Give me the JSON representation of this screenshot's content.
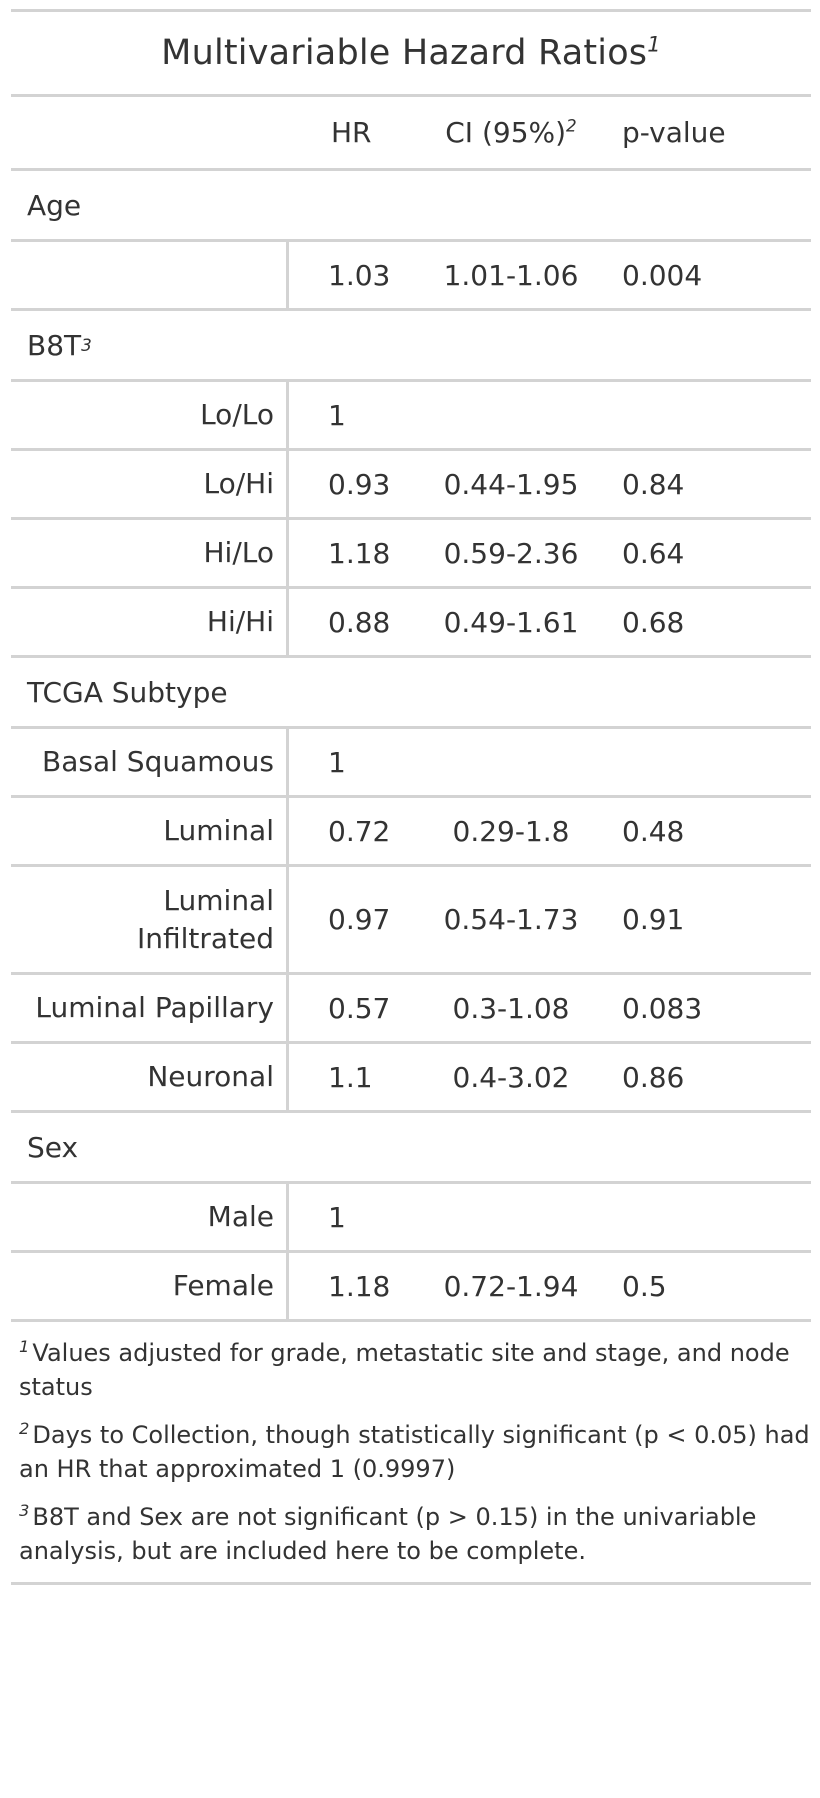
{
  "table": {
    "title": "Multivariable Hazard Ratios",
    "title_mark": "1",
    "columns": {
      "hr": "HR",
      "ci": "CI (95%)",
      "ci_mark": "2",
      "p": "p-value"
    },
    "groups": [
      {
        "label": "Age",
        "mark": "",
        "rows": [
          {
            "label": "",
            "hr": "1.03",
            "ci": "1.01-1.06",
            "p": "0.004"
          }
        ]
      },
      {
        "label": "B8T",
        "mark": "3",
        "rows": [
          {
            "label": "Lo/Lo",
            "hr": "1",
            "ci": "",
            "p": ""
          },
          {
            "label": "Lo/Hi",
            "hr": "0.93",
            "ci": "0.44-1.95",
            "p": "0.84"
          },
          {
            "label": "Hi/Lo",
            "hr": "1.18",
            "ci": "0.59-2.36",
            "p": "0.64"
          },
          {
            "label": "Hi/Hi",
            "hr": "0.88",
            "ci": "0.49-1.61",
            "p": "0.68"
          }
        ]
      },
      {
        "label": "TCGA Subtype",
        "mark": "",
        "rows": [
          {
            "label": "Basal Squamous",
            "hr": "1",
            "ci": "",
            "p": ""
          },
          {
            "label": "Luminal",
            "hr": "0.72",
            "ci": "0.29-1.8",
            "p": "0.48"
          },
          {
            "label": "Luminal Infiltrated",
            "hr": "0.97",
            "ci": "0.54-1.73",
            "p": "0.91"
          },
          {
            "label": "Luminal Papillary",
            "hr": "0.57",
            "ci": "0.3-1.08",
            "p": "0.083"
          },
          {
            "label": "Neuronal",
            "hr": "1.1",
            "ci": "0.4-3.02",
            "p": "0.86"
          }
        ]
      },
      {
        "label": "Sex",
        "mark": "",
        "rows": [
          {
            "label": "Male",
            "hr": "1",
            "ci": "",
            "p": ""
          },
          {
            "label": "Female",
            "hr": "1.18",
            "ci": "0.72-1.94",
            "p": "0.5"
          }
        ]
      }
    ],
    "footnotes": [
      {
        "mark": "1",
        "text": "Values adjusted for grade, metastatic site and stage, and node status"
      },
      {
        "mark": "2",
        "text": "Days to Collection, though statistically significant (p < 0.05) had an HR that approximated 1 (0.9997)"
      },
      {
        "mark": "3",
        "text": "B8T and Sex are not significant (p > 0.15) in the univariable analysis, but are included here to be complete."
      }
    ]
  },
  "colors": {
    "text": "#333333",
    "rule": "#d3d3d3",
    "background": "#ffffff"
  }
}
